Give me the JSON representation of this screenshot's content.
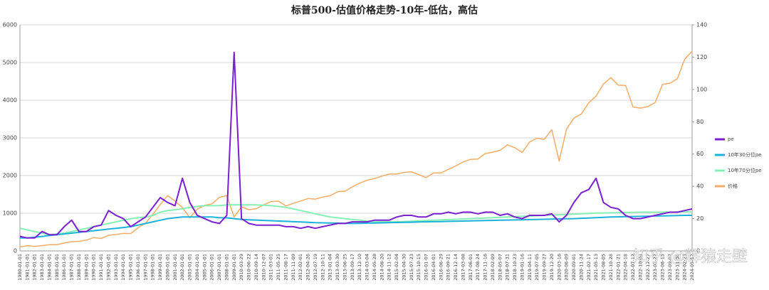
{
  "chart_data": {
    "type": "line",
    "title": "标普500-估值价格走势-10年-低估，高估",
    "watermark": "知乎 @辉猿走壁",
    "categories": [
      "1980-01-01",
      "1981-01-01",
      "1982-01-01",
      "1983-01-01",
      "1984-01-01",
      "1985-01-01",
      "1986-01-01",
      "1987-01-01",
      "1988-01-01",
      "1989-01-01",
      "1990-01-01",
      "1991-01-01",
      "1992-01-01",
      "1993-01-01",
      "1994-01-01",
      "1995-01-01",
      "1996-01-01",
      "1997-01-01",
      "1998-01-01",
      "1999-01-01",
      "2000-01-01",
      "2001-01-01",
      "2002-01-01",
      "2003-01-01",
      "2004-01-01",
      "2005-01-01",
      "2006-01-01",
      "2007-01-01",
      "2008-01-01",
      "2009-01-01",
      "2010-03-29",
      "2010-06-22",
      "2010-09-14",
      "2010-12-07",
      "2011-03-01",
      "2011-05-25",
      "2011-08-17",
      "2011-11-09",
      "2012-02-01",
      "2012-04-26",
      "2012-07-19",
      "2012-10-11",
      "2013-01-04",
      "2013-03-30",
      "2013-06-25",
      "2013-09-17",
      "2013-12-10",
      "2014-03-04",
      "2014-05-28",
      "2014-08-20",
      "2014-11-12",
      "2015-02-04",
      "2015-04-30",
      "2015-07-23",
      "2015-10-15",
      "2016-01-07",
      "2016-04-01",
      "2016-06-29",
      "2016-09-21",
      "2016-12-14",
      "2017-03-08",
      "2017-06-01",
      "2017-08-24",
      "2017-11-16",
      "2018-02-09",
      "2018-05-07",
      "2018-07-31",
      "2018-10-23",
      "2019-01-16",
      "2019-04-11",
      "2019-07-05",
      "2019-09-27",
      "2019-12-20",
      "2020-03-16",
      "2020-06-09",
      "2020-09-01",
      "2020-11-24",
      "2021-02-17",
      "2021-05-13",
      "2021-08-05",
      "2021-10-28",
      "2022-01-21",
      "2022-04-18",
      "2022-07-12",
      "2022-10-04",
      "2022-12-27",
      "2023-03-22",
      "2023-06-15",
      "2023-09-07",
      "2023-11-30",
      "2024-02-23",
      "2024-05-17"
    ],
    "series": [
      {
        "name": "pe",
        "color": "#7b1fd0",
        "axis": "y2",
        "width": 2,
        "values": [
          9,
          8,
          8,
          12,
          10,
          10,
          15,
          19,
          12,
          12,
          15,
          16,
          25,
          22,
          20,
          15,
          18,
          21,
          27,
          33,
          30,
          28,
          45,
          30,
          22,
          20,
          18,
          17,
          22,
          123,
          20,
          17,
          16,
          16,
          16,
          16,
          15,
          15,
          14,
          15,
          14,
          15,
          16,
          17,
          17,
          18,
          18,
          18,
          19,
          19,
          19,
          21,
          22,
          22,
          21,
          21,
          23,
          23,
          24,
          23,
          24,
          24,
          23,
          24,
          24,
          22,
          23,
          21,
          20,
          22,
          22,
          22,
          23,
          18,
          22,
          30,
          36,
          38,
          45,
          30,
          27,
          26,
          22,
          20,
          20,
          21,
          22,
          23,
          24,
          24,
          25,
          26
        ]
      },
      {
        "name": "10年30分位pe",
        "color": "#1cb2d9",
        "axis": "y2",
        "width": 2,
        "values": [
          8,
          8,
          8.5,
          9,
          9.5,
          10,
          10.5,
          11,
          11.5,
          12,
          12.5,
          13,
          13.5,
          14,
          14.5,
          15,
          16,
          17,
          18,
          19,
          20,
          20.5,
          21,
          21,
          21,
          21,
          21,
          20.5,
          20.5,
          20,
          19.5,
          19.3,
          19.1,
          18.9,
          18.7,
          18.5,
          18.3,
          18.1,
          17.9,
          17.7,
          17.5,
          17.4,
          17.3,
          17.2,
          17.1,
          17,
          17.1,
          17.2,
          17.3,
          17.4,
          17.5,
          17.6,
          17.7,
          17.8,
          17.9,
          18,
          18.1,
          18.2,
          18.3,
          18.4,
          18.5,
          18.6,
          18.7,
          18.8,
          18.9,
          19,
          19.1,
          19.2,
          19.3,
          19.4,
          19.5,
          19.6,
          19.7,
          19.8,
          19.9,
          20,
          20.2,
          20.4,
          20.6,
          20.8,
          21,
          21.1,
          21.2,
          21.3,
          21.4,
          21.5,
          21.6,
          21.7,
          21.8,
          21.9,
          22,
          22
        ]
      },
      {
        "name": "10年70分位pe",
        "color": "#86f0b4",
        "axis": "y2",
        "width": 2,
        "values": [
          14,
          13,
          12,
          11,
          10,
          10.5,
          11,
          12,
          13,
          14,
          15,
          16,
          17,
          18,
          19,
          20,
          20.5,
          21,
          22,
          24,
          25,
          25.5,
          26,
          27,
          27.5,
          28,
          28,
          28,
          28.5,
          28.5,
          28.5,
          28.5,
          28.5,
          28.3,
          28,
          27.5,
          27,
          26,
          25,
          24,
          23,
          22,
          21,
          20.5,
          20,
          19.5,
          19,
          18.5,
          18,
          18,
          18,
          18,
          18.2,
          18.4,
          18.6,
          18.8,
          19,
          19.2,
          19.4,
          19.6,
          19.8,
          20,
          20.2,
          20.4,
          20.6,
          20.8,
          21,
          21.2,
          21.4,
          21.6,
          21.8,
          22,
          22.2,
          22.4,
          22.6,
          22.8,
          23,
          23.2,
          23.4,
          23.5,
          23.6,
          23.7,
          23.8,
          23.9,
          24,
          24,
          24,
          24,
          24,
          24.1,
          24.2,
          24.3
        ]
      },
      {
        "name": "价格",
        "color": "#f3ad66",
        "axis": "y",
        "width": 1.5,
        "values": [
          110,
          135,
          120,
          140,
          165,
          165,
          210,
          245,
          255,
          285,
          355,
          330,
          415,
          435,
          465,
          460,
          615,
          740,
          970,
          1230,
          1470,
          1320,
          1150,
          880,
          1110,
          1210,
          1250,
          1420,
          1470,
          900,
          1170,
          1095,
          1120,
          1225,
          1310,
          1320,
          1195,
          1260,
          1325,
          1390,
          1375,
          1430,
          1465,
          1570,
          1585,
          1700,
          1800,
          1875,
          1920,
          1985,
          2040,
          2040,
          2085,
          2100,
          2025,
          1945,
          2070,
          2070,
          2165,
          2255,
          2360,
          2430,
          2440,
          2585,
          2620,
          2670,
          2815,
          2740,
          2615,
          2890,
          2990,
          2960,
          3220,
          2385,
          3230,
          3525,
          3635,
          3930,
          4110,
          4430,
          4600,
          4400,
          4390,
          3820,
          3790,
          3830,
          3940,
          4420,
          4450,
          4570,
          5090,
          5300
        ]
      }
    ],
    "ylim": [
      0,
      6000
    ],
    "yticks": [
      0,
      1000,
      2000,
      3000,
      4000,
      5000,
      6000
    ],
    "y2lim": [
      0,
      140
    ],
    "y2ticks": [
      0,
      20,
      40,
      60,
      80,
      100,
      120,
      140
    ],
    "grid": true,
    "legend": "right"
  }
}
